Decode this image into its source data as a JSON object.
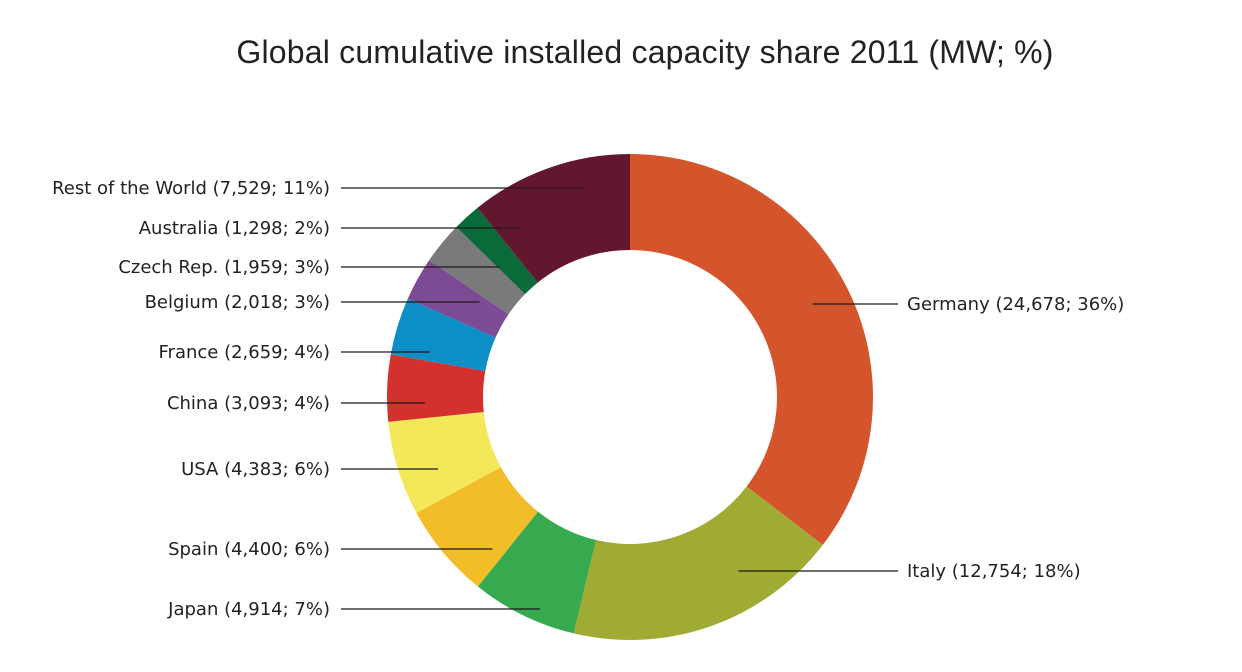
{
  "chart_data": {
    "type": "pie",
    "title": "Global cumulative installed capacity share 2011 (MW; %)",
    "donut": true,
    "slices": [
      {
        "label": "Germany (24,678; 36%)",
        "name": "Germany",
        "value": 24678,
        "percent": 36,
        "color": "#d4542b"
      },
      {
        "label": "Italy (12,754; 18%)",
        "name": "Italy",
        "value": 12754,
        "percent": 18,
        "color": "#9fab33"
      },
      {
        "label": "Japan (4,914; 7%)",
        "name": "Japan",
        "value": 4914,
        "percent": 7,
        "color": "#37aa4f"
      },
      {
        "label": "Spain (4,400; 6%)",
        "name": "Spain",
        "value": 4400,
        "percent": 6,
        "color": "#f3bc29"
      },
      {
        "label": "USA (4,383; 6%)",
        "name": "USA",
        "value": 4383,
        "percent": 6,
        "color": "#f3e85a"
      },
      {
        "label": "China (3,093; 4%)",
        "name": "China",
        "value": 3093,
        "percent": 4,
        "color": "#d3312e"
      },
      {
        "label": "France (2,659; 4%)",
        "name": "France",
        "value": 2659,
        "percent": 4,
        "color": "#0b8fc6"
      },
      {
        "label": "Belgium (2,018; 3%)",
        "name": "Belgium",
        "value": 2018,
        "percent": 3,
        "color": "#7d4b95"
      },
      {
        "label": "Czech Rep. (1,959; 3%)",
        "name": "Czech Rep.",
        "value": 1959,
        "percent": 3,
        "color": "#7a7a7a"
      },
      {
        "label": "Australia (1,298; 2%)",
        "name": "Australia",
        "value": 1298,
        "percent": 2,
        "color": "#0a6a3a"
      },
      {
        "label": "Rest of the World (7,529; 11%)",
        "name": "Rest of the World",
        "value": 7529,
        "percent": 11,
        "color": "#63172e"
      }
    ]
  }
}
